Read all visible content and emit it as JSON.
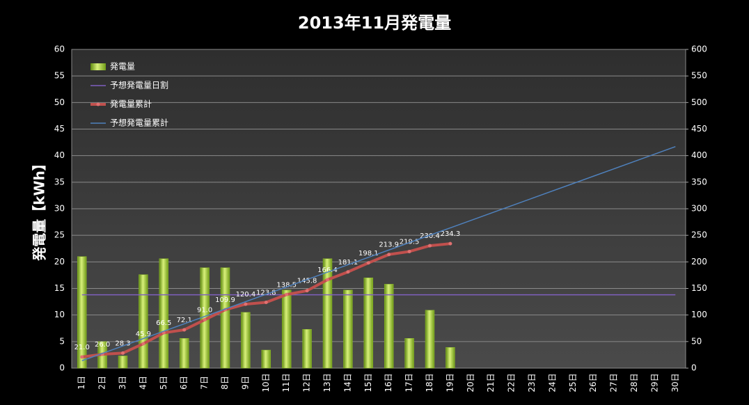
{
  "chart_data": {
    "type": "bar",
    "title": "2013年11月発電量",
    "y_label": "発電量【kWh】",
    "categories": [
      "1日",
      "2日",
      "3日",
      "4日",
      "5日",
      "6日",
      "7日",
      "8日",
      "9日",
      "10日",
      "11日",
      "12日",
      "13日",
      "14日",
      "15日",
      "16日",
      "17日",
      "18日",
      "19日",
      "20日",
      "21日",
      "22日",
      "23日",
      "24日",
      "25日",
      "26日",
      "27日",
      "28日",
      "29日",
      "30日"
    ],
    "series": [
      {
        "name": "発電量",
        "type": "bar",
        "color": "#8fbc2a",
        "values": [
          21.0,
          5.0,
          2.3,
          17.6,
          20.6,
          5.6,
          18.9,
          18.9,
          10.5,
          3.4,
          14.7,
          7.3,
          20.6,
          14.7,
          17.0,
          15.8,
          5.6,
          10.9,
          3.9,
          null,
          null,
          null,
          null,
          null,
          null,
          null,
          null,
          null,
          null,
          null
        ]
      },
      {
        "name": "予想発電量日割",
        "type": "line",
        "color": "#7f5fbf",
        "values": [
          13.8,
          13.8,
          13.8,
          13.8,
          13.8,
          13.8,
          13.8,
          13.8,
          13.8,
          13.8,
          13.8,
          13.8,
          13.8,
          13.8,
          13.8,
          13.8,
          13.8,
          13.8,
          13.8,
          13.8,
          13.8,
          13.8,
          13.8,
          13.8,
          13.8,
          13.8,
          13.8,
          13.8,
          13.8,
          13.8
        ]
      },
      {
        "name": "発電量累計",
        "type": "line",
        "axis": "y2",
        "color": "#c0504d",
        "markers": true,
        "values": [
          21.0,
          26.0,
          28.3,
          45.9,
          66.5,
          72.1,
          91.0,
          109.9,
          120.4,
          123.8,
          138.5,
          145.8,
          166.4,
          181.1,
          198.1,
          213.9,
          219.5,
          230.4,
          234.3,
          null,
          null,
          null,
          null,
          null,
          null,
          null,
          null,
          null,
          null,
          null
        ],
        "value_labels": [
          "21.0",
          "26.0",
          "28.3",
          "45.9",
          "66.5",
          "72.1",
          "91.0",
          "109.9",
          "120.4",
          "123.8",
          "138.5",
          "145.8",
          "166.4",
          "181.1",
          "198.1",
          "213.9",
          "219.5",
          "230.4",
          "234.3",
          null,
          null,
          null,
          null,
          null,
          null,
          null,
          null,
          null,
          null,
          null
        ]
      },
      {
        "name": "予想発電量累計",
        "type": "line",
        "axis": "y2",
        "color": "#4f81bd",
        "values": [
          13.9,
          27.8,
          41.7,
          55.6,
          69.5,
          83.4,
          97.3,
          111.2,
          125.1,
          139,
          152.9,
          166.8,
          180.7,
          194.6,
          208.5,
          222.4,
          236.3,
          250.2,
          264.1,
          278,
          291.9,
          305.8,
          319.7,
          333.6,
          347.5,
          361.4,
          375.3,
          389.2,
          403.1,
          417
        ]
      }
    ],
    "ylim": [
      0,
      60
    ],
    "yticks": [
      0,
      5,
      10,
      15,
      20,
      25,
      30,
      35,
      40,
      45,
      50,
      55,
      60
    ],
    "y2lim": [
      0,
      600
    ],
    "y2ticks": [
      0,
      50,
      100,
      150,
      200,
      250,
      300,
      350,
      400,
      450,
      500,
      550,
      600
    ],
    "grid": true
  }
}
